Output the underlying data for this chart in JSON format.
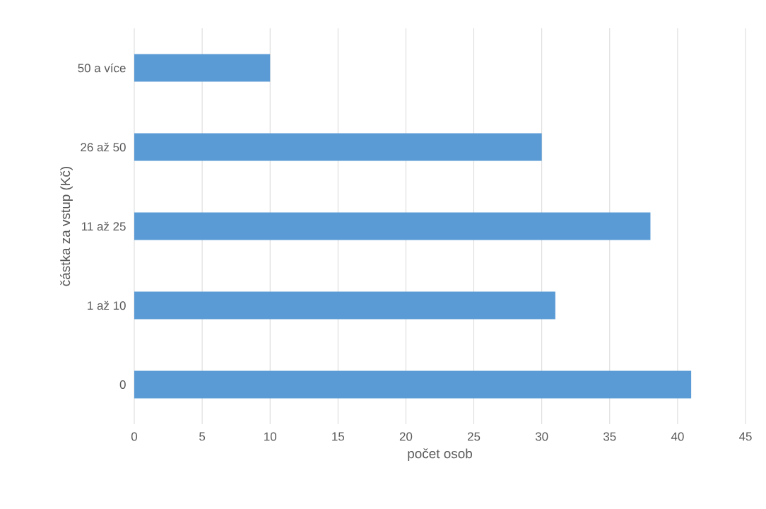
{
  "chart_data": {
    "type": "bar",
    "orientation": "horizontal",
    "categories": [
      "50 a více",
      "26 až 50",
      "11 až 25",
      "1 až 10",
      "0"
    ],
    "values": [
      10,
      30,
      38,
      31,
      41
    ],
    "color": "#5b9bd5",
    "xlabel": "počet osob",
    "ylabel": "částka za vstup (Kč)",
    "xlim": [
      0,
      45
    ],
    "xticks": [
      0,
      5,
      10,
      15,
      20,
      25,
      30,
      35,
      40,
      45
    ],
    "grid": "x"
  }
}
